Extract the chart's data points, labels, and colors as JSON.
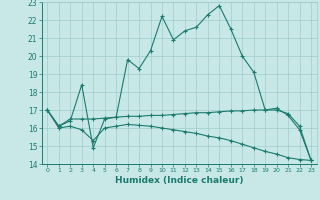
{
  "xlabel": "Humidex (Indice chaleur)",
  "x_values": [
    0,
    1,
    2,
    3,
    4,
    5,
    6,
    7,
    8,
    9,
    10,
    11,
    12,
    13,
    14,
    15,
    16,
    17,
    18,
    19,
    20,
    21,
    22,
    23
  ],
  "line1_y": [
    17,
    16.1,
    16.4,
    18.4,
    14.9,
    16.5,
    16.6,
    19.8,
    19.3,
    20.3,
    22.2,
    20.9,
    21.4,
    21.6,
    22.3,
    22.8,
    21.5,
    20.0,
    19.1,
    17.0,
    17.1,
    16.7,
    15.9,
    14.2
  ],
  "line2_y": [
    17,
    16.1,
    16.5,
    16.5,
    16.5,
    16.55,
    16.6,
    16.65,
    16.65,
    16.7,
    16.7,
    16.75,
    16.8,
    16.85,
    16.85,
    16.9,
    16.95,
    16.95,
    17.0,
    17.0,
    17.0,
    16.8,
    16.1,
    14.2
  ],
  "line3_y": [
    17,
    16.0,
    16.1,
    15.9,
    15.3,
    16.0,
    16.1,
    16.2,
    16.15,
    16.1,
    16.0,
    15.9,
    15.8,
    15.7,
    15.55,
    15.45,
    15.3,
    15.1,
    14.9,
    14.7,
    14.55,
    14.35,
    14.25,
    14.2
  ],
  "line_color": "#1a7a6e",
  "bg_color": "#c8e8e8",
  "grid_color": "#a0cccc",
  "ylim": [
    14,
    23
  ],
  "xlim": [
    -0.5,
    23.5
  ]
}
